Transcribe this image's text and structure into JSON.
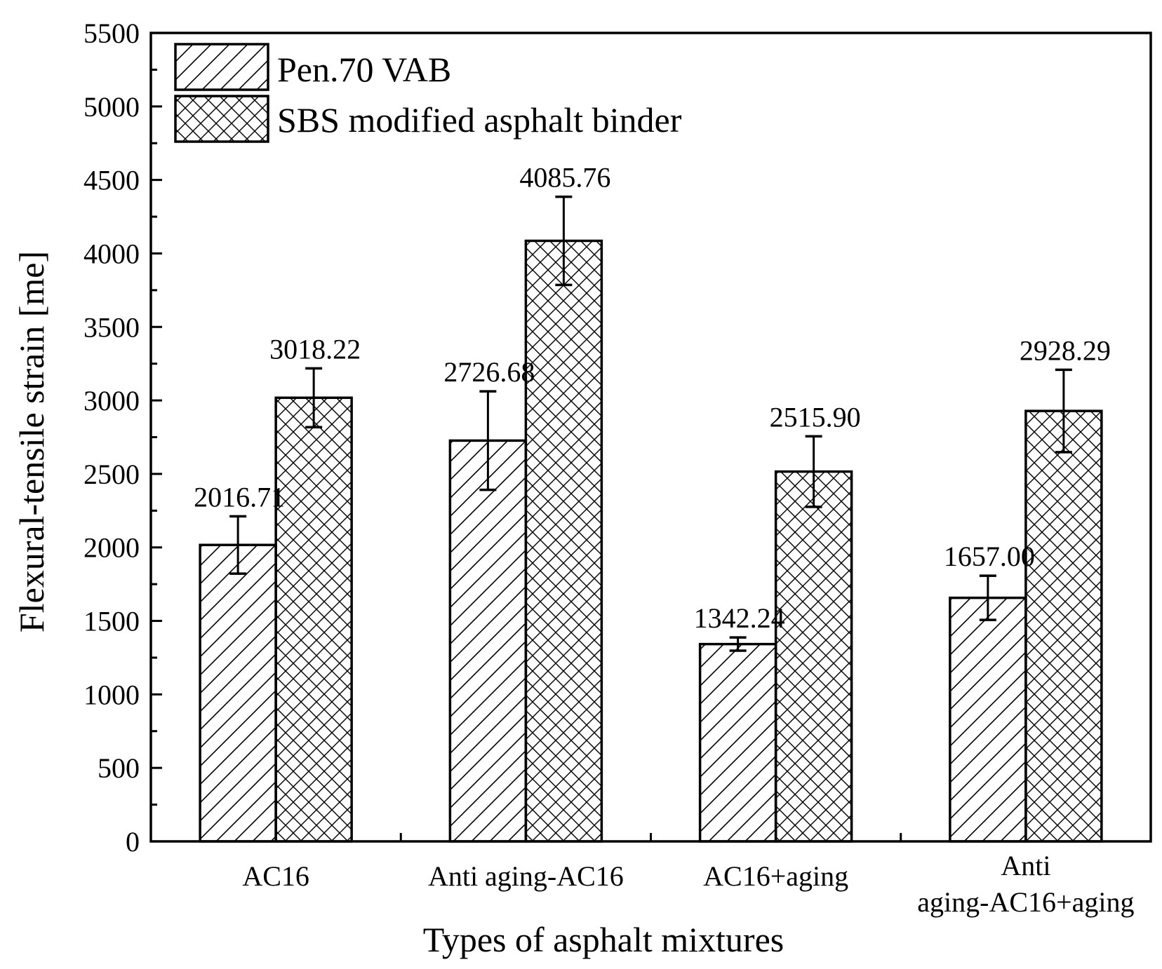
{
  "chart_data": {
    "type": "bar",
    "categories": [
      "AC16",
      "Anti aging-AC16",
      "AC16+aging",
      "Anti\naging-AC16+aging"
    ],
    "series": [
      {
        "name": "Pen.70 VAB",
        "values": [
          2016.71,
          2726.68,
          1342.24,
          1657.0
        ],
        "value_labels": [
          "2016.71",
          "2726.68",
          "1342.24",
          "1657.00"
        ],
        "error": [
          195,
          335,
          45,
          150
        ],
        "pattern": "diagonal-hatch"
      },
      {
        "name": "SBS modified asphalt binder",
        "values": [
          3018.22,
          4085.76,
          2515.9,
          2928.29
        ],
        "value_labels": [
          "3018.22",
          "4085.76",
          "2515.90",
          "2928.29"
        ],
        "error": [
          200,
          300,
          240,
          280
        ],
        "pattern": "cross-hatch"
      }
    ],
    "xlabel": "Types of asphalt mixtures",
    "ylabel": "Flexural-tensile strain [me]",
    "ylim": [
      0,
      5500
    ],
    "yticks": [
      0,
      500,
      1000,
      1500,
      2000,
      2500,
      3000,
      3500,
      4000,
      4500,
      5000,
      5500
    ],
    "grid": false,
    "legend_position": "top-left"
  }
}
